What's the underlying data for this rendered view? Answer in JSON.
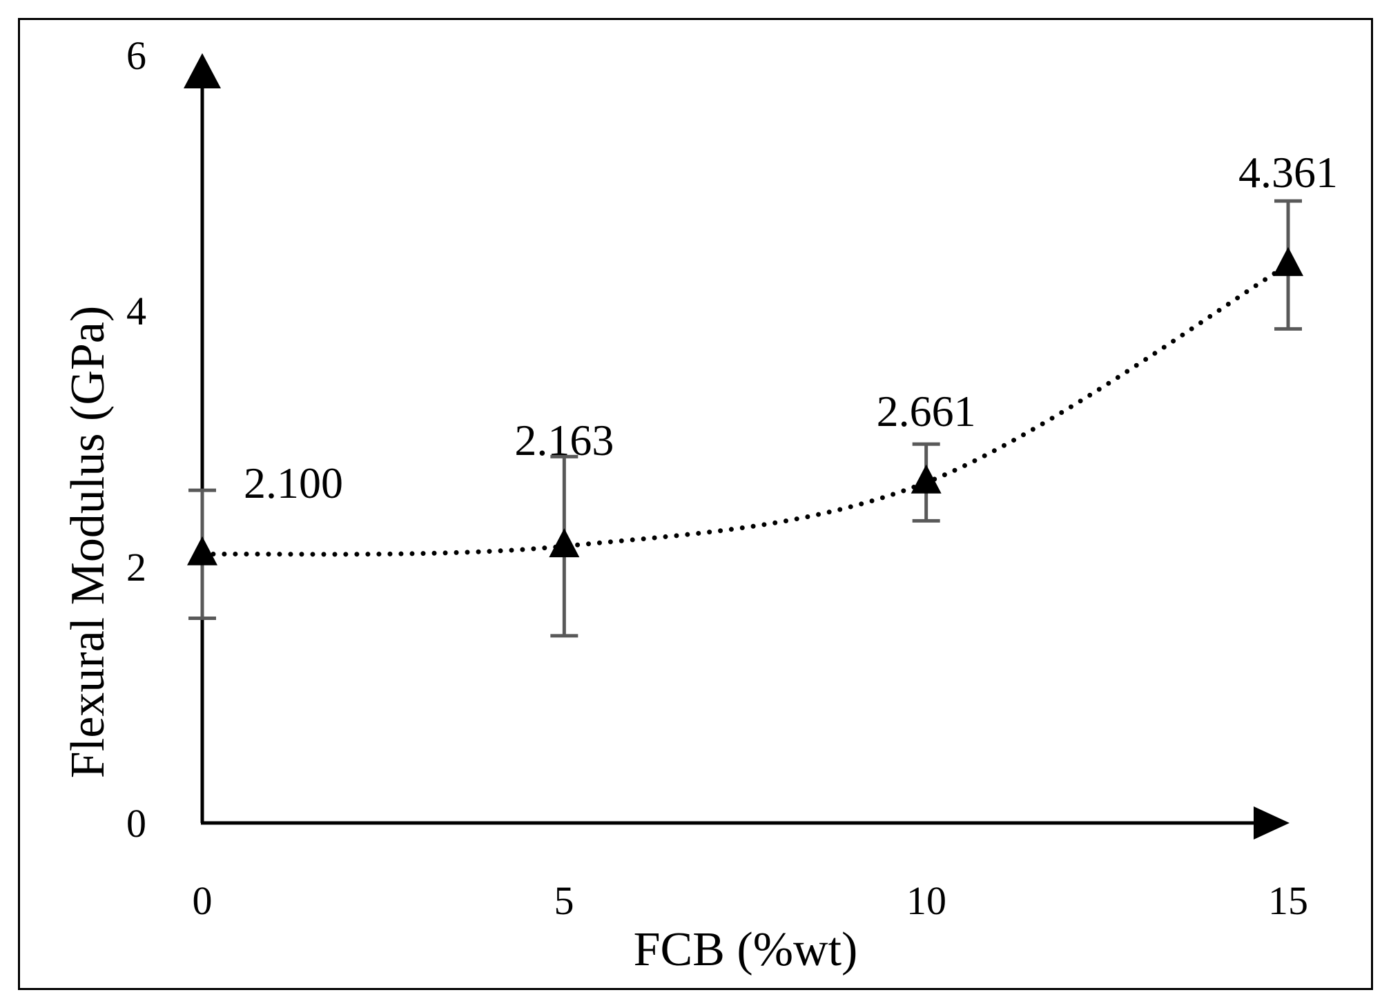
{
  "chart_data": {
    "type": "line",
    "title": "",
    "xlabel": "FCB (%wt)",
    "ylabel": "Flexural Modulus (GPa)",
    "xlim": [
      0,
      15
    ],
    "ylim": [
      0,
      6
    ],
    "x_ticks": [
      "0",
      "5",
      "10",
      "15"
    ],
    "y_ticks": [
      "0",
      "2",
      "4",
      "6"
    ],
    "grid": false,
    "series": [
      {
        "x": [
          0,
          5,
          10,
          15
        ],
        "values": [
          2.1,
          2.163,
          2.661,
          4.361
        ],
        "error": [
          0.5,
          0.7,
          0.3,
          0.5
        ],
        "data_labels": [
          "2.100",
          "2.163",
          "2.661",
          "4.361"
        ],
        "marker": "triangle",
        "line_style": "dotted",
        "color": "#000000",
        "error_bar_color": "#595959"
      }
    ]
  }
}
